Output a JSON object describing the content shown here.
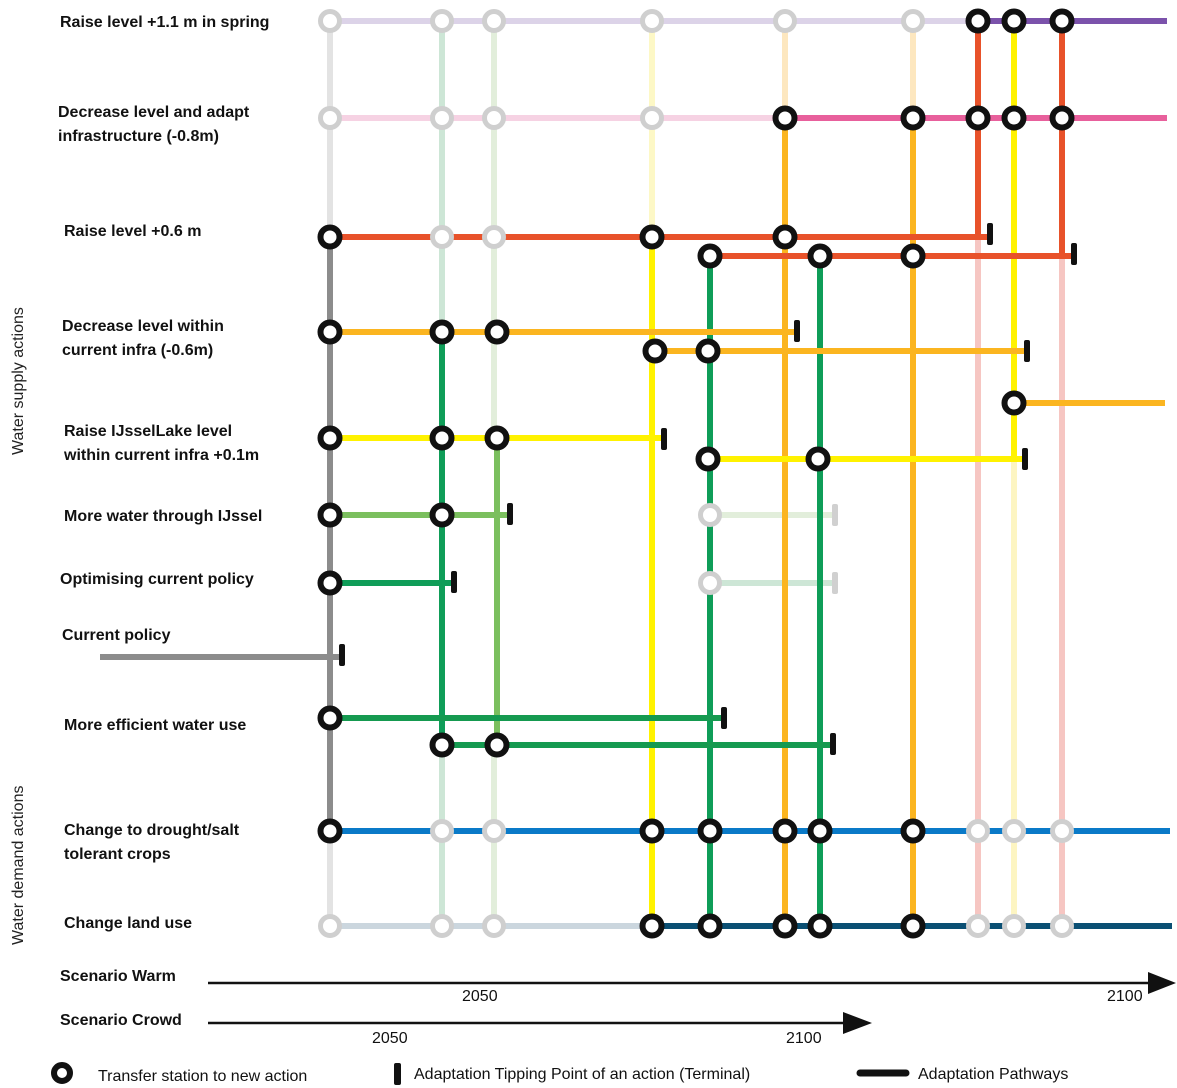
{
  "actions": {
    "raise_spring": [
      "Raise level +1.1 m in spring"
    ],
    "decrease_adapt": [
      "Decrease level and adapt",
      "infrastructure (-0.8m)"
    ],
    "raise_06": [
      "Raise level +0.6 m"
    ],
    "decrease_within": [
      "Decrease level within",
      "current infra (-0.6m)"
    ],
    "raise_ijssel": [
      "Raise IJsselLake level",
      "within current infra +0.1m"
    ],
    "more_water": [
      "More water through IJssel"
    ],
    "optimising": [
      "Optimising current policy"
    ],
    "current_policy": [
      "Current policy"
    ],
    "efficient": [
      "More efficient water use"
    ],
    "crops": [
      "Change to drought/salt",
      "tolerant crops"
    ],
    "land_use": [
      "Change land use"
    ]
  },
  "groups": {
    "supply": "Water supply actions",
    "demand": "Water demand actions"
  },
  "scenarios": [
    {
      "label": "Scenario Warm",
      "years": [
        "2050",
        "2100"
      ]
    },
    {
      "label": "Scenario Crowd",
      "years": [
        "2050",
        "2100"
      ]
    }
  ],
  "legend": {
    "transfer": "Transfer station to new action",
    "tipping": "Adaptation Tipping Point of an action (Terminal)",
    "pathways": "Adaptation Pathways"
  },
  "colors": {
    "raise_spring": "#7b52ab",
    "decrease_adapt": "#e8609c",
    "raise_06": "#e8522a",
    "decrease_within": "#fbb520",
    "raise_ijssel": "#fff200",
    "more_water": "#7bbf5e",
    "optimising": "#0f9d58",
    "efficient": "#159a50",
    "current_policy": "#8c8c8c",
    "crops": "#0a7ac8",
    "land_use": "#0a4f73"
  }
}
